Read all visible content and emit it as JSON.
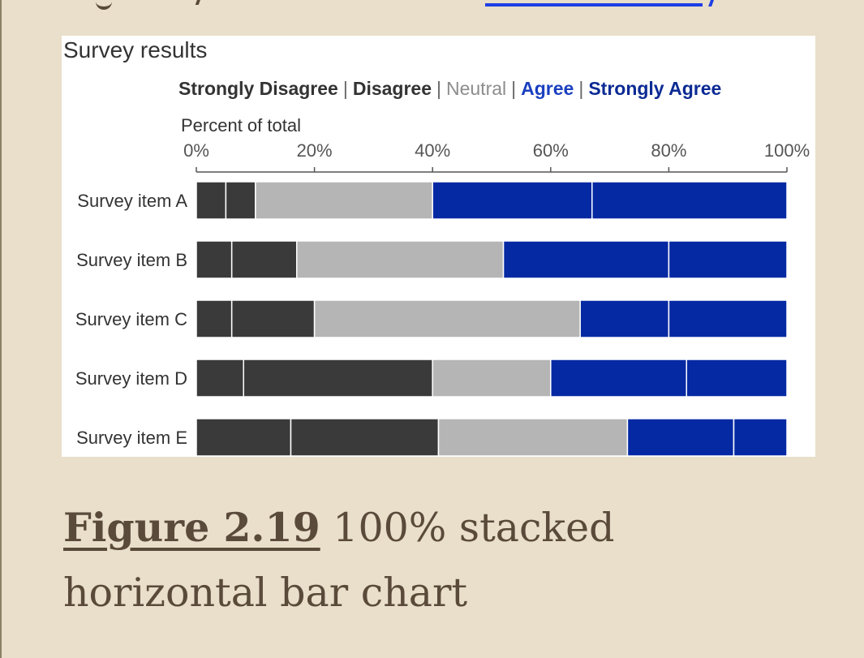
{
  "page": {
    "background": "#e9dfca",
    "caption": {
      "figure_ref": "Figure 2.19",
      "text": " 100% stacked horizontal bar chart",
      "color": "#5a4a3a"
    }
  },
  "chart_data": {
    "type": "bar",
    "orientation": "horizontal",
    "stacked": true,
    "percent": true,
    "title": "Survey results",
    "xlabel": "Percent of total",
    "xlim": [
      0,
      100
    ],
    "x_ticks": [
      0,
      20,
      40,
      60,
      80,
      100
    ],
    "x_tick_labels": [
      "0%",
      "20%",
      "40%",
      "60%",
      "80%",
      "100%"
    ],
    "grid": false,
    "legend_position": "top",
    "categories": [
      "Survey item A",
      "Survey item B",
      "Survey item C",
      "Survey item D",
      "Survey item E"
    ],
    "series": [
      {
        "name": "Strongly Disagree",
        "color": "#3a3a3a",
        "legend_color": "#333333",
        "values": [
          5,
          6,
          6,
          8,
          16
        ]
      },
      {
        "name": "Disagree",
        "color": "#3a3a3a",
        "legend_color": "#333333",
        "values": [
          5,
          11,
          14,
          32,
          25
        ]
      },
      {
        "name": "Neutral",
        "color": "#b5b5b5",
        "legend_color": "#8c8c8c",
        "values": [
          30,
          35,
          45,
          20,
          32
        ]
      },
      {
        "name": "Agree",
        "color": "#0429a3",
        "legend_color": "#1a3fc0",
        "values": [
          27,
          28,
          15,
          23,
          18
        ]
      },
      {
        "name": "Strongly Agree",
        "color": "#0429a3",
        "legend_color": "#0b2a94",
        "values": [
          33,
          20,
          20,
          17,
          9
        ]
      }
    ]
  }
}
